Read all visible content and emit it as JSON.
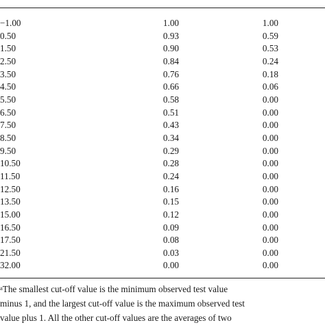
{
  "table": {
    "rows": [
      [
        "−1.00",
        "1.00",
        "1.00"
      ],
      [
        "0.50",
        "0.93",
        "0.59"
      ],
      [
        "1.50",
        "0.90",
        "0.53"
      ],
      [
        "2.50",
        "0.84",
        "0.24"
      ],
      [
        "3.50",
        "0.76",
        "0.18"
      ],
      [
        "4.50",
        "0.66",
        "0.06"
      ],
      [
        "5.50",
        "0.58",
        "0.00"
      ],
      [
        "6.50",
        "0.51",
        "0.00"
      ],
      [
        "7.50",
        "0.43",
        "0.00"
      ],
      [
        "8.50",
        "0.34",
        "0.00"
      ],
      [
        "9.50",
        "0.29",
        "0.00"
      ],
      [
        "10.50",
        "0.28",
        "0.00"
      ],
      [
        "11.50",
        "0.24",
        "0.00"
      ],
      [
        "12.50",
        "0.16",
        "0.00"
      ],
      [
        "13.50",
        "0.15",
        "0.00"
      ],
      [
        "15.00",
        "0.12",
        "0.00"
      ],
      [
        "16.50",
        "0.09",
        "0.00"
      ],
      [
        "17.50",
        "0.08",
        "0.00"
      ],
      [
        "21.50",
        "0.03",
        "0.00"
      ],
      [
        "32.00",
        "0.00",
        "0.00"
      ]
    ]
  },
  "footnote": {
    "marker": "a",
    "line1": "The smallest cut-off value is the minimum observed test value",
    "line2": "minus 1, and the largest cut-off value is the maximum observed test",
    "line3": "value plus 1. All the other cut-off values are the averages of two"
  }
}
